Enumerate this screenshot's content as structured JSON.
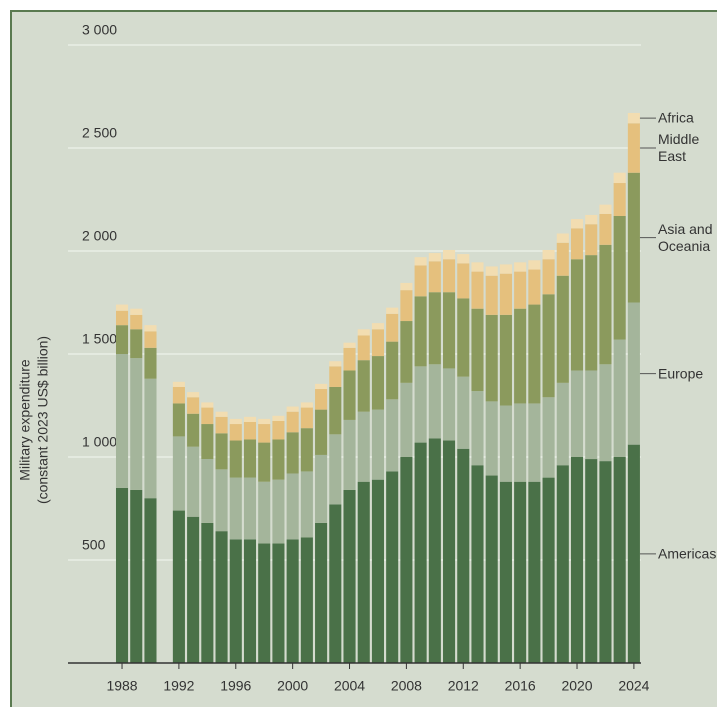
{
  "chart_data": {
    "type": "bar",
    "stacked": true,
    "ylabel": [
      "Military expenditure",
      "(constant 2023 US$ billion)"
    ],
    "x": [
      1988,
      1989,
      1990,
      1991,
      1992,
      1993,
      1994,
      1995,
      1996,
      1997,
      1998,
      1999,
      2000,
      2001,
      2002,
      2003,
      2004,
      2005,
      2006,
      2007,
      2008,
      2009,
      2010,
      2011,
      2012,
      2013,
      2014,
      2015,
      2016,
      2017,
      2018,
      2019,
      2020,
      2021,
      2022,
      2023,
      2024
    ],
    "xlim": [
      1984.2,
      2024.5
    ],
    "xticks": [
      1988,
      1992,
      1996,
      2000,
      2004,
      2008,
      2012,
      2016,
      2020,
      2024
    ],
    "ylim": [
      0,
      3000
    ],
    "yticks": [
      500,
      {
        "value": 1000,
        "label": "1 000"
      },
      {
        "value": 1500,
        "label": "1 500"
      },
      {
        "value": 2000,
        "label": "2 000"
      },
      {
        "value": 2500,
        "label": "2 500"
      },
      {
        "value": 3000,
        "label": "3 000"
      }
    ],
    "grid": true,
    "series": [
      {
        "name": "Americas",
        "color": "#4a7148",
        "values": [
          850,
          840,
          800,
          null,
          740,
          710,
          680,
          640,
          600,
          600,
          580,
          580,
          600,
          610,
          680,
          770,
          840,
          880,
          890,
          930,
          1000,
          1070,
          1090,
          1080,
          1040,
          960,
          910,
          880,
          880,
          880,
          900,
          960,
          1000,
          990,
          980,
          1000,
          1060
        ]
      },
      {
        "name": "Europe",
        "color": "#a4b59b",
        "values": [
          650,
          640,
          580,
          null,
          360,
          340,
          310,
          300,
          300,
          300,
          300,
          310,
          320,
          320,
          330,
          340,
          340,
          340,
          340,
          350,
          360,
          370,
          360,
          350,
          350,
          360,
          360,
          370,
          380,
          380,
          390,
          400,
          420,
          430,
          470,
          570,
          690
        ]
      },
      {
        "name": "Asia and Oceania",
        "color": "#8b9a5d",
        "values": [
          140,
          140,
          150,
          null,
          160,
          160,
          170,
          175,
          180,
          185,
          190,
          195,
          200,
          210,
          220,
          230,
          240,
          250,
          260,
          280,
          300,
          340,
          350,
          370,
          380,
          400,
          420,
          440,
          460,
          480,
          500,
          520,
          540,
          560,
          580,
          600,
          630
        ]
      },
      {
        "name": "Middle East",
        "color": "#e5c07d",
        "values": [
          70,
          70,
          80,
          null,
          80,
          80,
          80,
          80,
          80,
          85,
          90,
          90,
          100,
          100,
          100,
          100,
          110,
          120,
          130,
          135,
          150,
          150,
          150,
          160,
          170,
          180,
          190,
          200,
          180,
          170,
          170,
          160,
          150,
          150,
          150,
          160,
          240
        ]
      },
      {
        "name": "Africa",
        "color": "#f2ddb1",
        "values": [
          30,
          30,
          30,
          null,
          25,
          25,
          25,
          25,
          25,
          25,
          25,
          25,
          25,
          25,
          25,
          25,
          25,
          30,
          30,
          30,
          35,
          40,
          40,
          45,
          45,
          45,
          45,
          45,
          45,
          45,
          45,
          45,
          45,
          45,
          45,
          50,
          50
        ]
      }
    ]
  }
}
